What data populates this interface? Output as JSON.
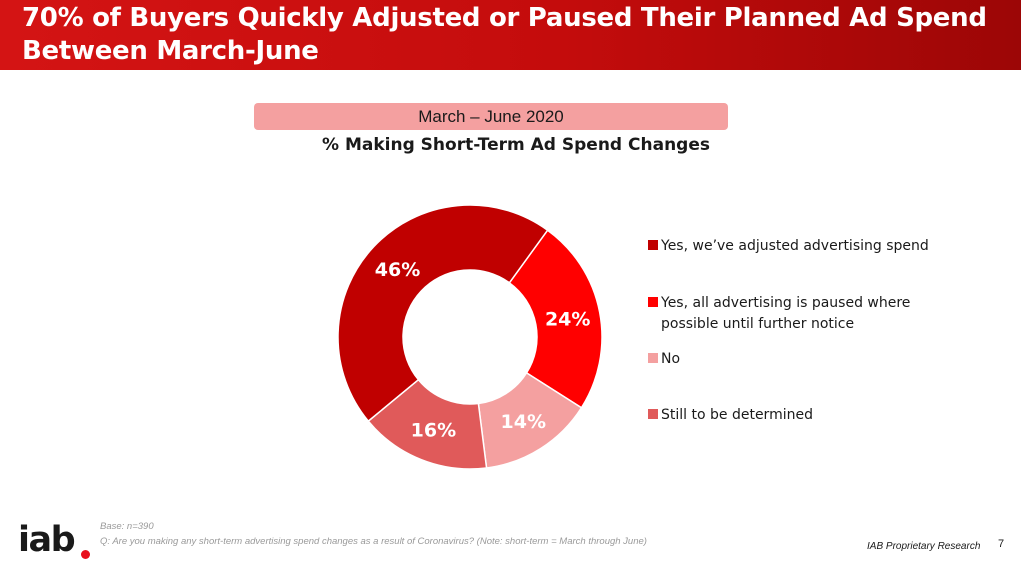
{
  "header": {
    "title": "70% of Buyers Quickly Adjusted or Paused Their Planned Ad Spend Between March-June"
  },
  "period_label": "March – June 2020",
  "colors": {
    "header_bg": "#c40c0c",
    "banner_bg": "#f4a0a0",
    "accent": "#e8101c"
  },
  "chart_data": {
    "type": "pie",
    "title": "% Making Short-Term Ad Spend Changes",
    "donut": true,
    "legend_position": "right",
    "series": [
      {
        "name": "Yes, we’ve adjusted advertising spend",
        "value": 46,
        "label": "46%",
        "color": "#c00000"
      },
      {
        "name": "Yes, all advertising is paused where possible until further notice",
        "value": 24,
        "label": "24%",
        "color": "#ff0000"
      },
      {
        "name": "No",
        "value": 14,
        "label": "14%",
        "color": "#f4a0a0"
      },
      {
        "name": "Still to be determined",
        "value": 16,
        "label": "16%",
        "color": "#e05a5a"
      }
    ]
  },
  "footnotes": {
    "base": "Base: n=390",
    "question": "Q: Are you making any short-term advertising spend changes as a result of Coronavirus? (Note: short-term = March through June)"
  },
  "footer": {
    "brand_text": "IAB Proprietary Research",
    "page_number": "7",
    "logo_text": "iab"
  }
}
